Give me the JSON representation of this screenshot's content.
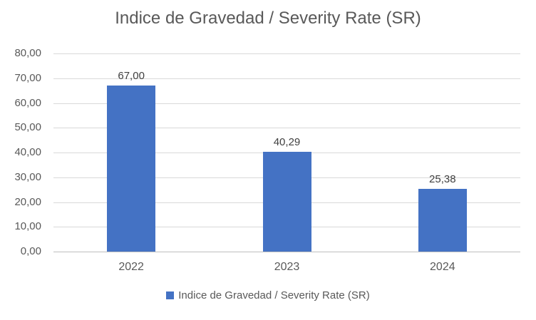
{
  "chart_data": {
    "type": "bar",
    "title": "Indice de Gravedad / Severity Rate (SR)",
    "categories": [
      "2022",
      "2023",
      "2024"
    ],
    "values": [
      67.0,
      40.29,
      25.38
    ],
    "value_labels": [
      "67,00",
      "40,29",
      "25,38"
    ],
    "series_name": "Indice de Gravedad / Severity Rate (SR)",
    "xlabel": "",
    "ylabel": "",
    "ylim": [
      0,
      80
    ],
    "tick_values": [
      80,
      70,
      60,
      50,
      40,
      30,
      20,
      10,
      0
    ],
    "tick_labels": [
      "80,00",
      "70,00",
      "60,00",
      "50,00",
      "40,00",
      "30,00",
      "20,00",
      "10,00",
      "0,00"
    ],
    "grid": true,
    "legend_position": "bottom",
    "colors": {
      "bar": "#4472C4",
      "title_text": "#595959",
      "axis_text": "#595959",
      "value_label_text": "#404040",
      "gridline": "#D9D9D9",
      "axis_line": "#BFBFBF",
      "background": "#FFFFFF"
    }
  },
  "legend": {
    "label": "Indice de Gravedad / Severity Rate (SR)"
  }
}
